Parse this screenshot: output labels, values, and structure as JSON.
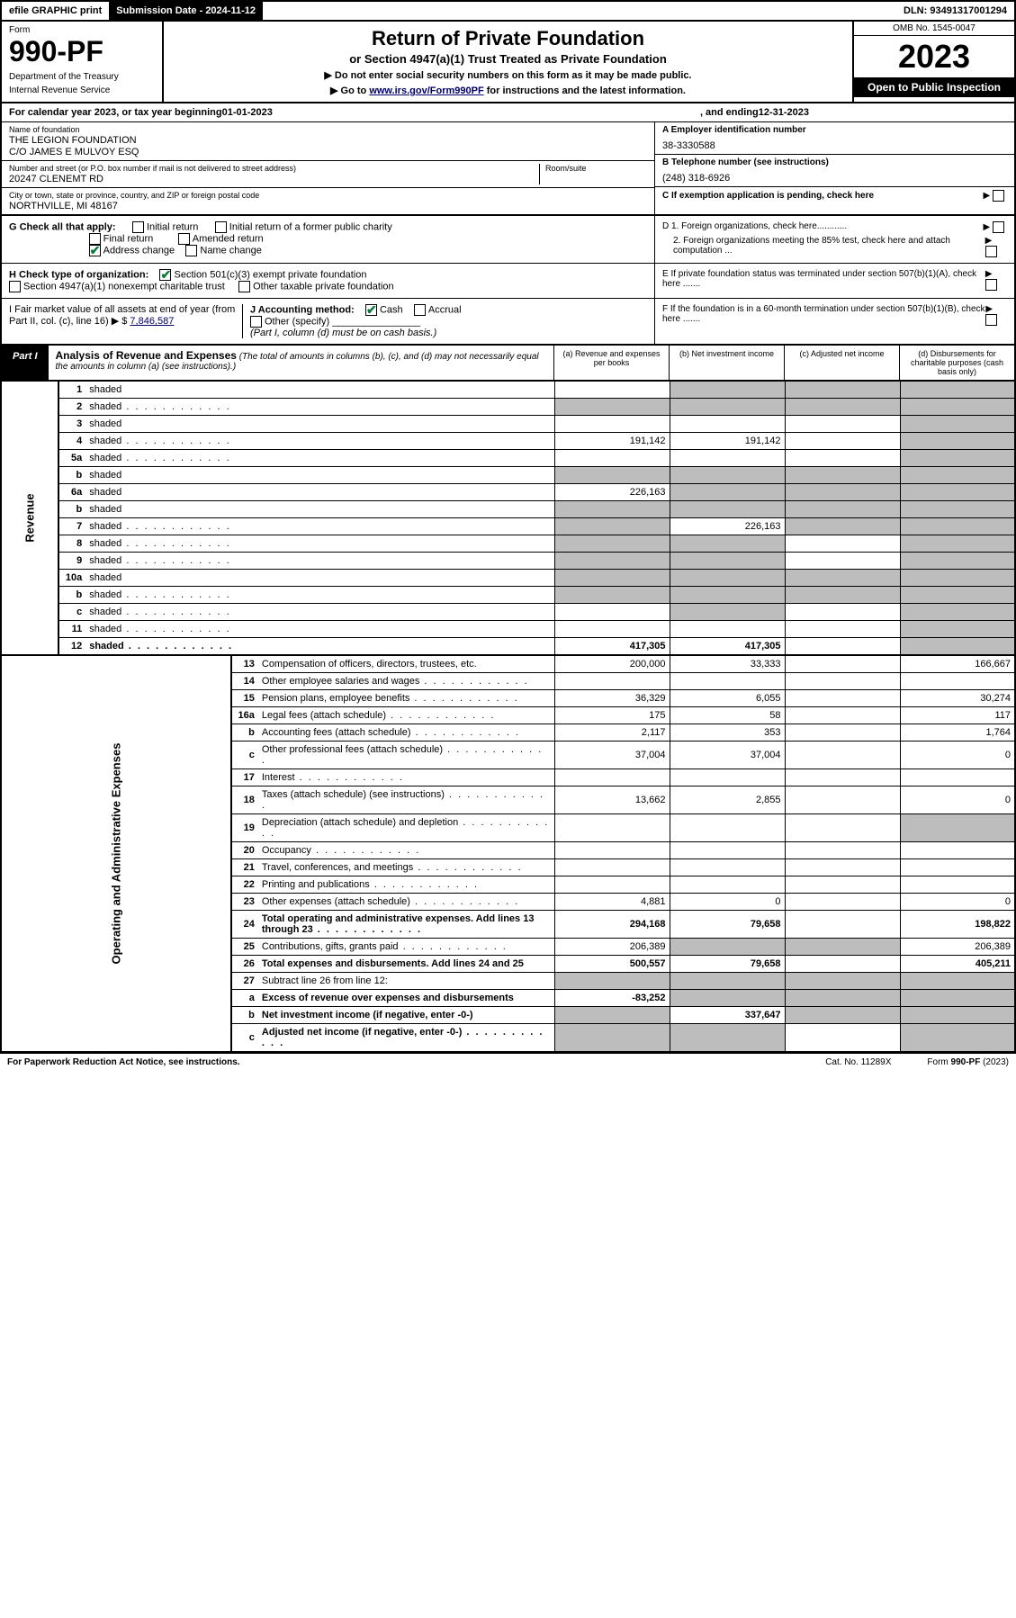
{
  "topbar": {
    "efile": "efile GRAPHIC print",
    "submission": "Submission Date - 2024-11-12",
    "dln": "DLN: 93491317001294"
  },
  "header": {
    "form_label": "Form",
    "form_num": "990-PF",
    "dept1": "Department of the Treasury",
    "dept2": "Internal Revenue Service",
    "title": "Return of Private Foundation",
    "subtitle": "or Section 4947(a)(1) Trust Treated as Private Foundation",
    "instr1": "▶ Do not enter social security numbers on this form as it may be made public.",
    "instr2_pre": "▶ Go to ",
    "instr2_link": "www.irs.gov/Form990PF",
    "instr2_post": " for instructions and the latest information.",
    "omb": "OMB No. 1545-0047",
    "year": "2023",
    "open": "Open to Public Inspection"
  },
  "cal": {
    "text_pre": "For calendar year 2023, or tax year beginning ",
    "begin": "01-01-2023",
    "text_mid": " , and ending ",
    "end": "12-31-2023"
  },
  "info": {
    "name_label": "Name of foundation",
    "name1": "THE LEGION FOUNDATION",
    "name2": "C/O JAMES E MULVOY ESQ",
    "addr_label": "Number and street (or P.O. box number if mail is not delivered to street address)",
    "addr": "20247 CLENEMT RD",
    "room_label": "Room/suite",
    "city_label": "City or town, state or province, country, and ZIP or foreign postal code",
    "city": "NORTHVILLE, MI  48167",
    "a_label": "A Employer identification number",
    "a_val": "38-3330588",
    "b_label": "B Telephone number (see instructions)",
    "b_val": "(248) 318-6926",
    "c_label": "C If exemption application is pending, check here"
  },
  "g": {
    "label": "G Check all that apply:",
    "initial": "Initial return",
    "initial_former": "Initial return of a former public charity",
    "final": "Final return",
    "amended": "Amended return",
    "address": "Address change",
    "name_change": "Name change"
  },
  "h": {
    "label": "H Check type of organization:",
    "s501": "Section 501(c)(3) exempt private foundation",
    "s4947": "Section 4947(a)(1) nonexempt charitable trust",
    "other_tax": "Other taxable private foundation"
  },
  "i": {
    "label": "I Fair market value of all assets at end of year (from Part II, col. (c), line 16) ▶ $",
    "val": "7,846,587"
  },
  "j": {
    "label": "J Accounting method:",
    "cash": "Cash",
    "accrual": "Accrual",
    "other": "Other (specify)",
    "note": "(Part I, column (d) must be on cash basis.)"
  },
  "d": {
    "d1": "D 1. Foreign organizations, check here............",
    "d2": "2. Foreign organizations meeting the 85% test, check here and attach computation ...",
    "e": "E  If private foundation status was terminated under section 507(b)(1)(A), check here .......",
    "f": "F  If the foundation is in a 60-month termination under section 507(b)(1)(B), check here ......."
  },
  "part1": {
    "tag": "Part I",
    "desc_b": "Analysis of Revenue and Expenses",
    "desc": " (The total of amounts in columns (b), (c), and (d) may not necessarily equal the amounts in column (a) (see instructions).)",
    "col_a": "(a) Revenue and expenses per books",
    "col_b": "(b) Net investment income",
    "col_c": "(c) Adjusted net income",
    "col_d": "(d) Disbursements for charitable purposes (cash basis only)"
  },
  "side": {
    "revenue": "Revenue",
    "expenses": "Operating and Administrative Expenses"
  },
  "lines": [
    {
      "n": "1",
      "d": "shaded",
      "a": "",
      "b": "shaded",
      "c": "shaded"
    },
    {
      "n": "2",
      "d": "shaded",
      "a": "shaded",
      "b": "shaded",
      "c": "shaded",
      "dots": true
    },
    {
      "n": "3",
      "d": "shaded",
      "a": "",
      "b": "",
      "c": ""
    },
    {
      "n": "4",
      "d": "shaded",
      "a": "191,142",
      "b": "191,142",
      "c": "",
      "dots": true
    },
    {
      "n": "5a",
      "d": "shaded",
      "a": "",
      "b": "",
      "c": "",
      "dots": true
    },
    {
      "n": "b",
      "d": "shaded",
      "a": "shaded",
      "b": "shaded",
      "c": "shaded"
    },
    {
      "n": "6a",
      "d": "shaded",
      "a": "226,163",
      "b": "shaded",
      "c": "shaded"
    },
    {
      "n": "b",
      "d": "shaded",
      "a": "shaded",
      "b": "shaded",
      "c": "shaded"
    },
    {
      "n": "7",
      "d": "shaded",
      "a": "shaded",
      "b": "226,163",
      "c": "shaded",
      "dots": true
    },
    {
      "n": "8",
      "d": "shaded",
      "a": "shaded",
      "b": "shaded",
      "c": "",
      "dots": true
    },
    {
      "n": "9",
      "d": "shaded",
      "a": "shaded",
      "b": "shaded",
      "c": "",
      "dots": true
    },
    {
      "n": "10a",
      "d": "shaded",
      "a": "shaded",
      "b": "shaded",
      "c": "shaded"
    },
    {
      "n": "b",
      "d": "shaded",
      "a": "shaded",
      "b": "shaded",
      "c": "shaded",
      "dots": true
    },
    {
      "n": "c",
      "d": "shaded",
      "a": "",
      "b": "shaded",
      "c": "",
      "dots": true
    },
    {
      "n": "11",
      "d": "shaded",
      "a": "",
      "b": "",
      "c": "",
      "dots": true
    },
    {
      "n": "12",
      "d": "shaded",
      "a": "417,305",
      "b": "417,305",
      "c": "",
      "bold": true,
      "dots": true
    }
  ],
  "exp_lines": [
    {
      "n": "13",
      "d": "Compensation of officers, directors, trustees, etc.",
      "a": "200,000",
      "b": "33,333",
      "c": "",
      "dd": "166,667"
    },
    {
      "n": "14",
      "d": "Other employee salaries and wages",
      "a": "",
      "b": "",
      "c": "",
      "dd": "",
      "dots": true
    },
    {
      "n": "15",
      "d": "Pension plans, employee benefits",
      "a": "36,329",
      "b": "6,055",
      "c": "",
      "dd": "30,274",
      "dots": true
    },
    {
      "n": "16a",
      "d": "Legal fees (attach schedule)",
      "a": "175",
      "b": "58",
      "c": "",
      "dd": "117",
      "dots": true
    },
    {
      "n": "b",
      "d": "Accounting fees (attach schedule)",
      "a": "2,117",
      "b": "353",
      "c": "",
      "dd": "1,764",
      "dots": true
    },
    {
      "n": "c",
      "d": "Other professional fees (attach schedule)",
      "a": "37,004",
      "b": "37,004",
      "c": "",
      "dd": "0",
      "dots": true
    },
    {
      "n": "17",
      "d": "Interest",
      "a": "",
      "b": "",
      "c": "",
      "dd": "",
      "dots": true
    },
    {
      "n": "18",
      "d": "Taxes (attach schedule) (see instructions)",
      "a": "13,662",
      "b": "2,855",
      "c": "",
      "dd": "0",
      "dots": true
    },
    {
      "n": "19",
      "d": "Depreciation (attach schedule) and depletion",
      "a": "",
      "b": "",
      "c": "",
      "dd": "shaded",
      "dots": true
    },
    {
      "n": "20",
      "d": "Occupancy",
      "a": "",
      "b": "",
      "c": "",
      "dd": "",
      "dots": true
    },
    {
      "n": "21",
      "d": "Travel, conferences, and meetings",
      "a": "",
      "b": "",
      "c": "",
      "dd": "",
      "dots": true
    },
    {
      "n": "22",
      "d": "Printing and publications",
      "a": "",
      "b": "",
      "c": "",
      "dd": "",
      "dots": true
    },
    {
      "n": "23",
      "d": "Other expenses (attach schedule)",
      "a": "4,881",
      "b": "0",
      "c": "",
      "dd": "0",
      "dots": true
    },
    {
      "n": "24",
      "d": "Total operating and administrative expenses. Add lines 13 through 23",
      "a": "294,168",
      "b": "79,658",
      "c": "",
      "dd": "198,822",
      "bold": true,
      "dots": true
    },
    {
      "n": "25",
      "d": "Contributions, gifts, grants paid",
      "a": "206,389",
      "b": "shaded",
      "c": "shaded",
      "dd": "206,389",
      "dots": true
    },
    {
      "n": "26",
      "d": "Total expenses and disbursements. Add lines 24 and 25",
      "a": "500,557",
      "b": "79,658",
      "c": "",
      "dd": "405,211",
      "bold": true
    },
    {
      "n": "27",
      "d": "Subtract line 26 from line 12:",
      "a": "shaded",
      "b": "shaded",
      "c": "shaded",
      "dd": "shaded"
    },
    {
      "n": "a",
      "d": "Excess of revenue over expenses and disbursements",
      "a": "-83,252",
      "b": "shaded",
      "c": "shaded",
      "dd": "shaded",
      "bold": true
    },
    {
      "n": "b",
      "d": "Net investment income (if negative, enter -0-)",
      "a": "shaded",
      "b": "337,647",
      "c": "shaded",
      "dd": "shaded",
      "bold": true
    },
    {
      "n": "c",
      "d": "Adjusted net income (if negative, enter -0-)",
      "a": "shaded",
      "b": "shaded",
      "c": "",
      "dd": "shaded",
      "bold": true,
      "dots": true
    }
  ],
  "footer": {
    "left": "For Paperwork Reduction Act Notice, see instructions.",
    "mid": "Cat. No. 11289X",
    "right": "Form 990-PF (2023)"
  }
}
